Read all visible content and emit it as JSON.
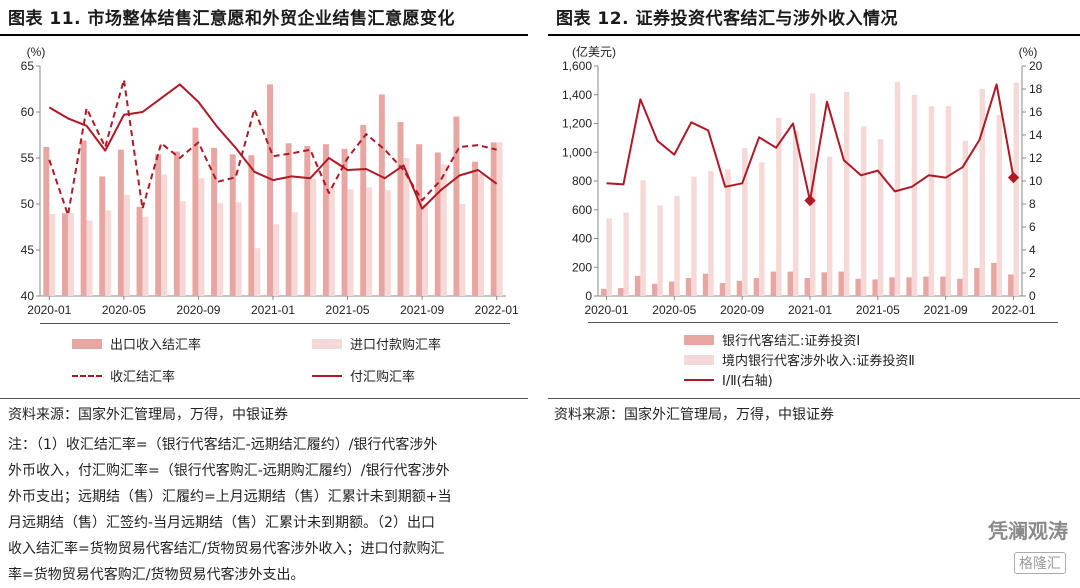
{
  "left": {
    "title": "图表 11. 市场整体结售汇意愿和外贸企业结售汇意愿变化",
    "source": "资料来源：国家外汇管理局，万得，中银证券",
    "notes": [
      "注：（1）收汇结汇率=（银行代客结汇-远期结汇履约）/银行代客涉外",
      "外币收入，付汇购汇率=（银行代客购汇-远期购汇履约）/银行代客涉外",
      "外币支出；远期结（售）汇履约=上月远期结（售）汇累计未到期额+当",
      "月远期结（售）汇签约-当月远期结（售）汇累计未到期额。（2）出口",
      "收入结汇率=货物贸易代客结汇/货物贸易代客涉外收入；进口付款购汇",
      "率=货物贸易代客购汇/货物贸易代客涉外支出。"
    ],
    "legend": {
      "bar1": "出口收入结汇率",
      "bar2": "进口付款购汇率",
      "line1": "收汇结汇率",
      "line2": "付汇购汇率"
    }
  },
  "right": {
    "title": "图表 12. 证券投资代客结汇与涉外收入情况",
    "source": "资料来源：国家外汇管理局，万得，中银证券",
    "legend": {
      "bar1": "银行代客结汇:证券投资Ⅰ",
      "bar2": "境内银行代客涉外收入:证券投资Ⅱ",
      "line": "Ⅰ/Ⅱ(右轴)"
    }
  },
  "watermark": {
    "brand": "凭澜观涛",
    "site": "格隆汇"
  },
  "colors": {
    "bar_dark": "#e8a6a2",
    "bar_light": "#f6d8d6",
    "line": "#b01826",
    "axis": "#888888"
  },
  "chart_data": [
    {
      "type": "bar",
      "id": "fx-settlement-willingness",
      "title": "",
      "ylabel": "(%)",
      "ylim": [
        40,
        65
      ],
      "yticks": [
        40,
        45,
        50,
        55,
        60,
        65
      ],
      "xtick_labels": [
        "2020-01",
        "2020-05",
        "2020-09",
        "2021-01",
        "2021-05",
        "2021-09",
        "2022-01"
      ],
      "x": [
        "2020-01",
        "2020-02",
        "2020-03",
        "2020-04",
        "2020-05",
        "2020-06",
        "2020-07",
        "2020-08",
        "2020-09",
        "2020-10",
        "2020-11",
        "2020-12",
        "2021-01",
        "2021-02",
        "2021-03",
        "2021-04",
        "2021-05",
        "2021-06",
        "2021-07",
        "2021-08",
        "2021-09",
        "2021-10",
        "2021-11",
        "2021-12",
        "2022-01"
      ],
      "series": [
        {
          "name": "出口收入结汇率",
          "kind": "bar",
          "values": [
            56.2,
            49.0,
            56.9,
            53.0,
            55.9,
            49.7,
            55.4,
            55.7,
            58.3,
            56.1,
            55.4,
            55.3,
            63.0,
            56.6,
            56.3,
            56.5,
            56.0,
            58.6,
            61.9,
            58.9,
            56.5,
            55.6,
            59.5,
            54.6,
            56.7
          ]
        },
        {
          "name": "进口付款购汇率",
          "kind": "bar",
          "values": [
            48.9,
            49.0,
            48.2,
            49.3,
            51.0,
            48.6,
            53.2,
            50.3,
            52.8,
            50.1,
            50.2,
            45.2,
            47.8,
            49.1,
            52.7,
            51.8,
            51.6,
            51.8,
            51.5,
            55.0,
            50.0,
            54.3,
            50.0,
            53.3,
            56.7
          ]
        },
        {
          "name": "收汇结汇率",
          "kind": "line-dashed",
          "values": [
            54.8,
            48.8,
            60.4,
            56.2,
            63.5,
            49.5,
            56.6,
            55.0,
            56.7,
            52.4,
            52.9,
            60.3,
            55.2,
            55.5,
            55.9,
            51.2,
            55.0,
            57.6,
            55.9,
            53.7,
            50.4,
            52.6,
            56.2,
            56.4,
            55.9
          ]
        },
        {
          "name": "付汇购汇率",
          "kind": "line",
          "values": [
            60.5,
            59.3,
            58.5,
            55.8,
            59.7,
            60.0,
            61.5,
            63.0,
            61.1,
            58.4,
            56.1,
            53.5,
            52.6,
            53.0,
            52.8,
            55.0,
            53.7,
            53.8,
            52.8,
            54.2,
            49.5,
            51.5,
            53.1,
            53.7,
            52.2
          ]
        }
      ]
    },
    {
      "type": "bar",
      "id": "securities-investment-settlement",
      "title": "",
      "ylabel": "(亿美元)",
      "y2label": "(%)",
      "ylim": [
        0,
        1600
      ],
      "y2lim": [
        0,
        20
      ],
      "yticks": [
        0,
        200,
        400,
        600,
        800,
        1000,
        1200,
        1400,
        1600
      ],
      "y2ticks": [
        0,
        2,
        4,
        6,
        8,
        10,
        12,
        14,
        16,
        18,
        20
      ],
      "xtick_labels": [
        "2020-01",
        "2020-05",
        "2020-09",
        "2021-01",
        "2021-05",
        "2021-09",
        "2022-01"
      ],
      "x": [
        "2020-01",
        "2020-02",
        "2020-03",
        "2020-04",
        "2020-05",
        "2020-06",
        "2020-07",
        "2020-08",
        "2020-09",
        "2020-10",
        "2020-11",
        "2020-12",
        "2021-01",
        "2021-02",
        "2021-03",
        "2021-04",
        "2021-05",
        "2021-06",
        "2021-07",
        "2021-08",
        "2021-09",
        "2021-10",
        "2021-11",
        "2021-12",
        "2022-01"
      ],
      "series": [
        {
          "name": "银行代客结汇:证券投资Ⅰ",
          "kind": "bar",
          "axis": "left",
          "values": [
            50,
            55,
            140,
            85,
            100,
            125,
            155,
            90,
            105,
            125,
            170,
            170,
            125,
            165,
            170,
            120,
            115,
            130,
            130,
            135,
            135,
            120,
            195,
            230,
            150
          ]
        },
        {
          "name": "境内银行代客涉外收入:证券投资Ⅱ",
          "kind": "bar",
          "axis": "left",
          "values": [
            540,
            580,
            805,
            630,
            695,
            830,
            870,
            880,
            1030,
            930,
            1240,
            1150,
            1410,
            970,
            1420,
            1180,
            1090,
            1490,
            1400,
            1320,
            1320,
            1080,
            1440,
            1260,
            1485
          ]
        },
        {
          "name": "Ⅰ/Ⅱ(右轴)",
          "kind": "line",
          "axis": "right",
          "values": [
            9.8,
            9.7,
            17.1,
            13.5,
            12.3,
            15.1,
            14.4,
            9.5,
            9.8,
            13.8,
            12.9,
            15.0,
            8.3,
            16.9,
            11.8,
            10.5,
            10.9,
            9.1,
            9.5,
            10.5,
            10.3,
            11.2,
            13.6,
            18.4,
            10.3
          ]
        }
      ]
    }
  ]
}
